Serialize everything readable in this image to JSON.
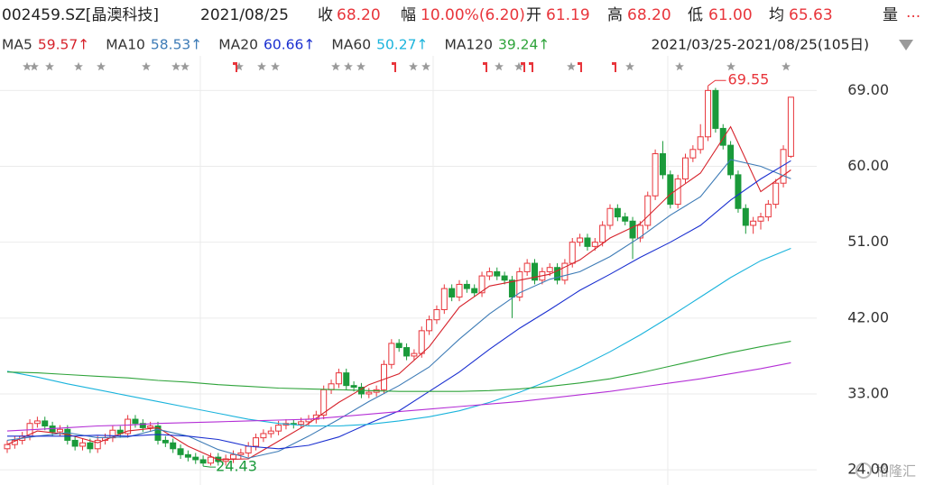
{
  "header": {
    "symbol": "002459.SZ[晶澳科技]",
    "date": "2021/08/25",
    "close_label": "收",
    "close": "68.20",
    "change_label": "幅",
    "change": "10.00%(6.20)",
    "open_label": "开",
    "open": "61.19",
    "high_label": "高",
    "high": "68.20",
    "low_label": "低",
    "low": "61.00",
    "avg_label": "均",
    "avg": "65.63",
    "volume_label": "量",
    "more": "...",
    "range": "2021/03/25-2021/08/25(105日)"
  },
  "watermark": "格隆汇",
  "chart_data": {
    "type": "candlestick",
    "up_color": "#e8353b",
    "down_color": "#1a9a3a",
    "grid": true,
    "ylim": [
      22.2,
      73.1
    ],
    "yticks": [
      {
        "value": 24,
        "label": "24.00"
      },
      {
        "value": 33,
        "label": "33.00"
      },
      {
        "value": 42,
        "label": "42.00"
      },
      {
        "value": 51,
        "label": "51.00"
      },
      {
        "value": 60,
        "label": "60.00"
      },
      {
        "value": 69,
        "label": "69.00"
      }
    ],
    "high_annotation": "69.55",
    "low_annotation": "24.43",
    "ohlc": [
      [
        26.5,
        27.5,
        26.0,
        27.0
      ],
      [
        27.0,
        28.0,
        26.5,
        27.5
      ],
      [
        27.5,
        28.5,
        27.0,
        28.0
      ],
      [
        28.0,
        30.0,
        27.5,
        29.5
      ],
      [
        29.5,
        30.3,
        29.0,
        29.8
      ],
      [
        29.8,
        30.3,
        28.7,
        29.2
      ],
      [
        29.2,
        29.7,
        28.0,
        28.5
      ],
      [
        28.5,
        29.3,
        28.0,
        28.8
      ],
      [
        28.8,
        29.3,
        27.0,
        27.5
      ],
      [
        27.5,
        28.0,
        26.3,
        26.8
      ],
      [
        26.8,
        27.7,
        26.3,
        27.2
      ],
      [
        27.2,
        27.7,
        26.0,
        26.5
      ],
      [
        26.5,
        28.0,
        26.0,
        27.5
      ],
      [
        27.5,
        28.3,
        27.0,
        27.8
      ],
      [
        27.8,
        29.2,
        27.3,
        28.7
      ],
      [
        28.7,
        29.2,
        27.8,
        28.3
      ],
      [
        28.3,
        30.5,
        27.8,
        30.0
      ],
      [
        30.0,
        30.5,
        29.0,
        29.5
      ],
      [
        29.5,
        30.0,
        28.5,
        29.0
      ],
      [
        29.0,
        29.7,
        28.5,
        29.2
      ],
      [
        29.2,
        29.7,
        27.0,
        27.5
      ],
      [
        27.5,
        28.0,
        26.7,
        27.2
      ],
      [
        27.2,
        27.7,
        26.0,
        26.5
      ],
      [
        26.5,
        27.0,
        25.3,
        25.8
      ],
      [
        25.8,
        26.3,
        25.0,
        25.5
      ],
      [
        25.5,
        26.0,
        24.7,
        25.2
      ],
      [
        25.2,
        25.7,
        24.43,
        24.8
      ],
      [
        24.8,
        26.0,
        24.5,
        25.5
      ],
      [
        25.5,
        26.0,
        24.5,
        25.0
      ],
      [
        25.0,
        25.8,
        24.5,
        25.3
      ],
      [
        25.3,
        26.3,
        24.8,
        25.8
      ],
      [
        25.8,
        26.5,
        25.3,
        26.0
      ],
      [
        26.0,
        27.3,
        25.5,
        26.8
      ],
      [
        26.8,
        28.3,
        26.3,
        27.8
      ],
      [
        27.8,
        28.8,
        27.3,
        28.3
      ],
      [
        28.3,
        29.1,
        27.8,
        28.6
      ],
      [
        28.6,
        29.8,
        28.1,
        29.3
      ],
      [
        29.3,
        30.0,
        28.8,
        29.5
      ],
      [
        29.5,
        30.0,
        28.9,
        29.4
      ],
      [
        29.4,
        30.2,
        28.9,
        29.7
      ],
      [
        29.7,
        30.5,
        29.2,
        30.0
      ],
      [
        30.0,
        31.0,
        29.5,
        30.5
      ],
      [
        30.5,
        34.0,
        30.0,
        33.5
      ],
      [
        33.5,
        34.7,
        33.0,
        34.2
      ],
      [
        34.2,
        36.0,
        33.7,
        35.5
      ],
      [
        35.5,
        36.0,
        33.5,
        34.0
      ],
      [
        34.0,
        34.5,
        33.3,
        33.8
      ],
      [
        33.8,
        34.3,
        32.5,
        33.0
      ],
      [
        33.0,
        33.7,
        32.5,
        33.2
      ],
      [
        33.2,
        34.0,
        32.7,
        33.5
      ],
      [
        33.5,
        37.0,
        33.0,
        36.5
      ],
      [
        36.5,
        39.5,
        36.0,
        39.0
      ],
      [
        39.0,
        39.5,
        38.0,
        38.5
      ],
      [
        38.5,
        39.0,
        37.0,
        37.5
      ],
      [
        37.5,
        38.3,
        37.0,
        37.8
      ],
      [
        37.8,
        41.0,
        37.3,
        40.5
      ],
      [
        40.5,
        42.3,
        40.0,
        41.8
      ],
      [
        41.8,
        43.5,
        41.3,
        43.0
      ],
      [
        43.0,
        46.0,
        42.5,
        45.5
      ],
      [
        45.5,
        46.0,
        44.0,
        44.5
      ],
      [
        44.5,
        46.5,
        44.0,
        46.0
      ],
      [
        46.0,
        46.5,
        45.0,
        45.5
      ],
      [
        45.5,
        46.0,
        44.5,
        45.0
      ],
      [
        45.0,
        47.5,
        44.5,
        47.0
      ],
      [
        47.0,
        48.0,
        46.5,
        47.5
      ],
      [
        47.5,
        48.0,
        46.5,
        47.0
      ],
      [
        47.0,
        47.5,
        46.0,
        46.5
      ],
      [
        46.5,
        47.0,
        42.0,
        44.5
      ],
      [
        44.5,
        48.0,
        44.0,
        47.5
      ],
      [
        47.5,
        49.0,
        47.0,
        48.5
      ],
      [
        48.5,
        49.0,
        46.0,
        46.5
      ],
      [
        46.5,
        48.0,
        46.0,
        47.5
      ],
      [
        47.5,
        48.5,
        47.0,
        48.0
      ],
      [
        48.0,
        48.5,
        46.0,
        46.5
      ],
      [
        46.5,
        49.0,
        46.0,
        48.5
      ],
      [
        48.5,
        51.5,
        48.0,
        51.0
      ],
      [
        51.0,
        52.0,
        50.5,
        51.5
      ],
      [
        51.5,
        52.0,
        50.0,
        50.5
      ],
      [
        50.5,
        51.5,
        50.0,
        51.0
      ],
      [
        51.0,
        53.5,
        50.5,
        53.0
      ],
      [
        53.0,
        55.5,
        52.5,
        55.0
      ],
      [
        55.0,
        55.5,
        53.5,
        54.0
      ],
      [
        54.0,
        54.5,
        53.0,
        53.5
      ],
      [
        53.5,
        54.0,
        49.0,
        51.5
      ],
      [
        51.5,
        53.5,
        51.0,
        53.0
      ],
      [
        53.0,
        57.0,
        52.5,
        56.5
      ],
      [
        56.5,
        62.0,
        56.0,
        61.5
      ],
      [
        61.5,
        63.0,
        58.5,
        59.0
      ],
      [
        59.0,
        59.5,
        55.0,
        55.5
      ],
      [
        55.5,
        59.0,
        55.0,
        58.5
      ],
      [
        58.5,
        61.5,
        58.0,
        61.0
      ],
      [
        61.0,
        62.5,
        60.5,
        62.0
      ],
      [
        62.0,
        65.0,
        61.5,
        63.5
      ],
      [
        63.5,
        69.55,
        63.0,
        69.0
      ],
      [
        69.0,
        69.3,
        64.0,
        64.5
      ],
      [
        64.5,
        65.0,
        62.0,
        62.5
      ],
      [
        62.5,
        63.0,
        58.5,
        59.0
      ],
      [
        59.0,
        59.5,
        54.5,
        55.0
      ],
      [
        55.0,
        55.5,
        52.0,
        53.0
      ],
      [
        53.0,
        54.0,
        52.0,
        53.5
      ],
      [
        53.5,
        54.5,
        52.5,
        54.0
      ],
      [
        54.0,
        56.0,
        53.5,
        55.5
      ],
      [
        55.5,
        58.5,
        55.0,
        58.0
      ],
      [
        58.0,
        62.5,
        57.5,
        62.0
      ],
      [
        61.19,
        68.2,
        61.0,
        68.2
      ]
    ],
    "ma_x": [
      0,
      4,
      8,
      12,
      16,
      20,
      24,
      28,
      32,
      36,
      40,
      44,
      48,
      52,
      56,
      60,
      64,
      68,
      72,
      76,
      80,
      84,
      88,
      92,
      96,
      100,
      104
    ],
    "series": [
      {
        "name": "MA5",
        "current": "59.57↑",
        "color": "#d6222b",
        "values": [
          27.0,
          28.6,
          28.2,
          27.2,
          28.6,
          29.0,
          26.8,
          25.2,
          25.3,
          27.4,
          29.5,
          32.0,
          34.1,
          35.4,
          38.6,
          43.3,
          45.8,
          46.5,
          47.2,
          48.9,
          51.5,
          53.2,
          56.7,
          59.2,
          64.7,
          57.0,
          59.57
        ]
      },
      {
        "name": "MA10",
        "current": "58.53↑",
        "color": "#3d7bb6",
        "values": [
          27.5,
          28.0,
          28.4,
          27.8,
          27.9,
          28.8,
          28.0,
          26.4,
          25.4,
          26.2,
          28.0,
          30.0,
          32.1,
          34.0,
          36.2,
          39.5,
          42.5,
          45.0,
          46.6,
          47.5,
          49.3,
          51.6,
          54.2,
          56.4,
          60.8,
          60.0,
          58.53
        ]
      },
      {
        "name": "MA20",
        "current": "60.66↑",
        "color": "#1a2fd0",
        "values": [
          28.0,
          28.0,
          28.0,
          28.1,
          28.0,
          28.2,
          28.0,
          27.6,
          26.8,
          26.5,
          26.9,
          27.9,
          29.5,
          31.0,
          33.3,
          35.6,
          38.3,
          40.8,
          43.0,
          45.3,
          47.2,
          49.2,
          51.0,
          53.0,
          56.0,
          58.5,
          60.66
        ]
      },
      {
        "name": "MA60",
        "current": "50.27↑",
        "color": "#19b3dc",
        "values": [
          35.7,
          35.0,
          34.2,
          33.5,
          32.8,
          32.1,
          31.4,
          30.7,
          30.0,
          29.5,
          29.2,
          29.2,
          29.4,
          29.8,
          30.3,
          31.0,
          32.0,
          33.2,
          34.6,
          36.2,
          38.0,
          40.0,
          42.2,
          44.5,
          46.8,
          48.8,
          50.27
        ]
      },
      {
        "name": "MA120",
        "current": "39.24↑",
        "color": "#2ea33a",
        "values": [
          35.6,
          35.5,
          35.3,
          35.1,
          34.9,
          34.6,
          34.4,
          34.1,
          33.9,
          33.7,
          33.6,
          33.5,
          33.4,
          33.3,
          33.3,
          33.3,
          33.4,
          33.6,
          33.9,
          34.3,
          34.8,
          35.5,
          36.3,
          37.1,
          37.9,
          38.6,
          39.24
        ]
      },
      {
        "color": "#b42fd6",
        "values": [
          28.6,
          28.8,
          29.0,
          29.2,
          29.3,
          29.5,
          29.6,
          29.7,
          29.8,
          29.9,
          30.0,
          30.3,
          30.6,
          30.9,
          31.2,
          31.5,
          31.8,
          32.1,
          32.5,
          32.9,
          33.3,
          33.8,
          34.3,
          34.8,
          35.4,
          36.0,
          36.7
        ]
      }
    ]
  }
}
